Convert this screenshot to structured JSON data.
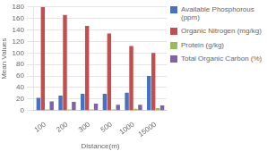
{
  "chart_data": {
    "type": "bar",
    "categories": [
      "100",
      "200",
      "300",
      "500",
      "1000",
      "15000"
    ],
    "series": [
      {
        "name": "Available Phosphorous\n(ppm)",
        "color": "#4472C4",
        "values": [
          22,
          26,
          29,
          29,
          31,
          60
        ]
      },
      {
        "name": "Organic Nitrogen (mg/kg)",
        "color": "#C0504D",
        "values": [
          180,
          166,
          147,
          134,
          112,
          100
        ]
      },
      {
        "name": "Protein (g/kg)",
        "color": "#9BBB59",
        "values": [
          2,
          2,
          2,
          2,
          3,
          4
        ]
      },
      {
        "name": "Total Organic Carbon (%)",
        "color": "#8064A2",
        "values": [
          16,
          15,
          12,
          10,
          10,
          9
        ]
      }
    ],
    "xlabel": "Distance(m)",
    "ylabel": "Mean Values",
    "ylim": [
      0,
      180
    ],
    "yticks": [
      0,
      20,
      40,
      60,
      80,
      100,
      120,
      140,
      160,
      180
    ],
    "grid": true,
    "legend": "right"
  }
}
